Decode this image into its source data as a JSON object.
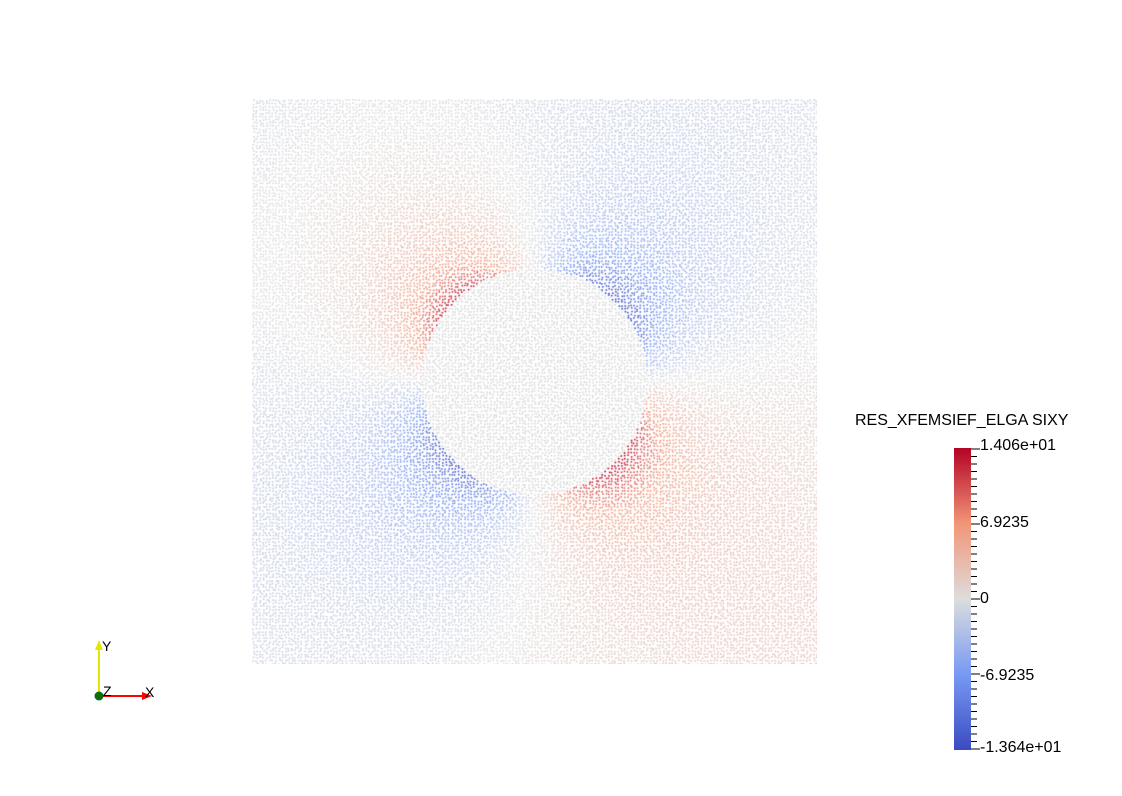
{
  "view": {
    "legend": {
      "title": "RES_XFEMSIEF_ELGA SIXY",
      "max_label": "1.406e+01",
      "upper_mid_label": "6.9235",
      "zero_label": "0",
      "lower_mid_label": "-6.9235",
      "min_label": "-1.364e+01",
      "min_value": -13.64,
      "max_value": 14.06,
      "colors": {
        "low": "#3b4cc0",
        "mid": "#dddddd",
        "high": "#b40426"
      }
    },
    "orientation_axes": {
      "x_label": "X",
      "y_label": "Y",
      "z_label": "Z",
      "x_color": "#ff0000",
      "y_color": "#ffff00",
      "z_color": "#006400"
    },
    "field": {
      "field_name": "SIXY",
      "hole_color": "#dcdcdc",
      "background": "#ffffff"
    }
  }
}
